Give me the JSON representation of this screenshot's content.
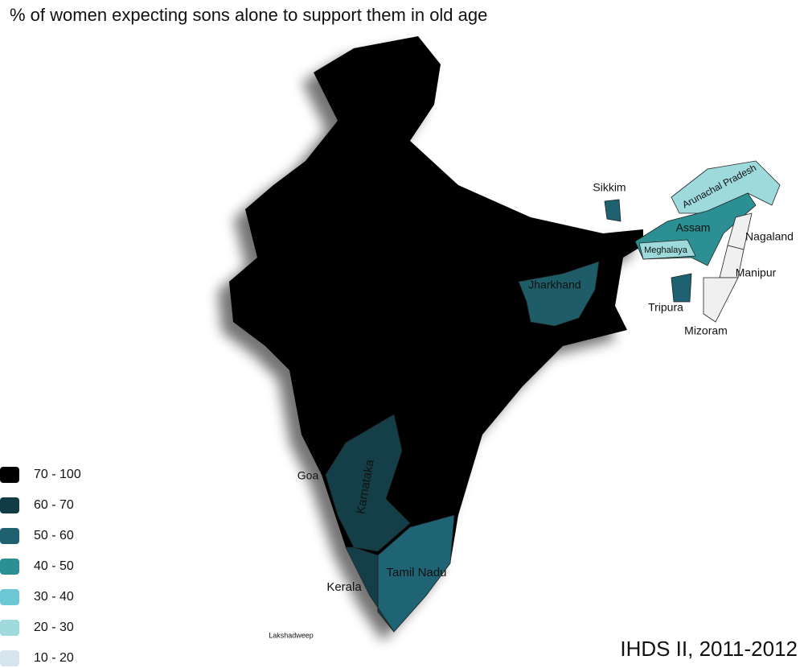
{
  "title": "% of women expecting sons alone to support them in old age",
  "legend": [
    {
      "label": "70 - 100",
      "color": "#000000"
    },
    {
      "label": "60 - 70",
      "color": "#113c46"
    },
    {
      "label": "50 - 60",
      "color": "#1e6170"
    },
    {
      "label": "40 - 50",
      "color": "#2b8f93"
    },
    {
      "label": "30 - 40",
      "color": "#6cc8d4"
    },
    {
      "label": "20 - 30",
      "color": "#9edadc"
    },
    {
      "label": "10 - 20",
      "color": "#d6e4ee"
    }
  ],
  "regions": [
    {
      "label": "Sikkim",
      "color": "#1e6170"
    },
    {
      "label": "Arunachal Pradesh",
      "color": "#9edadc"
    },
    {
      "label": "Assam",
      "color": "#2b8f93"
    },
    {
      "label": "Meghalaya",
      "color": "#9edadc"
    },
    {
      "label": "Nagaland",
      "color": "#f0f0f0"
    },
    {
      "label": "Manipur",
      "color": "#f0f0f0"
    },
    {
      "label": "Tripura",
      "color": "#1e6170"
    },
    {
      "label": "Mizoram",
      "color": "#f0f0f0"
    },
    {
      "label": "Jharkhand",
      "color": "#1e5c68"
    },
    {
      "label": "Goa",
      "color": "#000000"
    },
    {
      "label": "Karnataka",
      "color": "#143f48"
    },
    {
      "label": "Tamil Nadu",
      "color": "#1e6474"
    },
    {
      "label": "Kerala",
      "color": "#143f48"
    },
    {
      "label": "Lakshadweep",
      "color": "#000000"
    }
  ],
  "source": "IHDS II, 2011-2012"
}
